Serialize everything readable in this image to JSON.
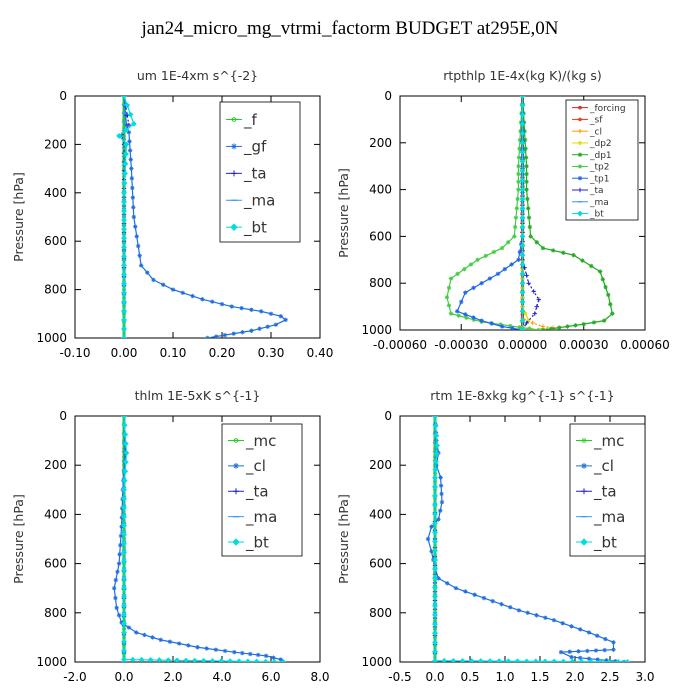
{
  "figure_title": "jan24_micro_mg_vtrmi_factorm  BUDGET at295E,0N",
  "chart_data": [
    {
      "type": "line",
      "title": "um   1E-4xm s^{-2}",
      "ylabel": "Pressure [hPa]",
      "xlim": [
        -0.1,
        0.4
      ],
      "ylim": [
        1000,
        0
      ],
      "xticks": [
        "-0.10",
        "0.00",
        "0.10",
        "0.20",
        "0.30",
        "0.40"
      ],
      "xtick_values": [
        -0.1,
        0.0,
        0.1,
        0.2,
        0.3,
        0.4
      ],
      "yticks": [
        "0",
        "200",
        "400",
        "600",
        "800",
        "1000"
      ],
      "ytick_values": [
        0,
        200,
        400,
        600,
        800,
        1000
      ],
      "legend_placement": "top-right",
      "legend_size": "large",
      "series": [
        {
          "name": "_f",
          "color": "#22cc22",
          "marker": "circle",
          "x": [
            0,
            0,
            0,
            0,
            0,
            0,
            0,
            0,
            0,
            0,
            0
          ],
          "y": [
            0,
            100,
            200,
            300,
            400,
            500,
            600,
            700,
            800,
            900,
            1000
          ]
        },
        {
          "name": "_gf",
          "color": "#1f6fdf",
          "marker": "star",
          "x": [
            0,
            0.005,
            0.01,
            0.015,
            0.02,
            0.035,
            0.06,
            0.1,
            0.16,
            0.22,
            0.28,
            0.32,
            0.33,
            0.31,
            0.26,
            0.17
          ],
          "y": [
            0,
            120,
            150,
            300,
            500,
            700,
            760,
            800,
            840,
            870,
            890,
            910,
            925,
            945,
            970,
            1000
          ]
        },
        {
          "name": "_ta",
          "color": "#2222cc",
          "marker": "plus",
          "x": [
            0,
            0.01,
            -0.005,
            0,
            0,
            0
          ],
          "y": [
            0,
            120,
            160,
            200,
            600,
            1000
          ]
        },
        {
          "name": "_ma",
          "color": "#3399ff",
          "marker": "dash",
          "x": [
            0,
            0,
            0,
            0,
            0
          ],
          "y": [
            0,
            250,
            500,
            750,
            1000
          ]
        },
        {
          "name": "_bt",
          "color": "#00dddd",
          "marker": "diamond",
          "x": [
            0,
            0.02,
            -0.01,
            0.005,
            0,
            0
          ],
          "y": [
            0,
            115,
            165,
            200,
            400,
            1000
          ]
        }
      ]
    },
    {
      "type": "line",
      "title": "rtpthlp   1E-4x(kg K)/(kg s)",
      "ylabel": "Pressure [hPa]",
      "xlim": [
        -0.0006,
        0.0006
      ],
      "ylim": [
        1000,
        0
      ],
      "xticks": [
        "-0.00060",
        "-0.00030",
        "0.00000",
        "0.00030",
        "0.00060"
      ],
      "xtick_values": [
        -0.0006,
        -0.0003,
        0.0,
        0.0003,
        0.0006
      ],
      "yticks": [
        "0",
        "200",
        "400",
        "600",
        "800",
        "1000"
      ],
      "ytick_values": [
        0,
        200,
        400,
        600,
        800,
        1000
      ],
      "legend_placement": "top-right",
      "legend_size": "small",
      "series": [
        {
          "name": "_forcing",
          "color": "#cc2222",
          "marker": "circle",
          "x": [
            0,
            0,
            0,
            0,
            0,
            0,
            0,
            0,
            0,
            0,
            0
          ],
          "y": [
            0,
            100,
            200,
            300,
            400,
            500,
            600,
            700,
            800,
            900,
            1000
          ]
        },
        {
          "name": "_sf",
          "color": "#ee3311",
          "marker": "circle",
          "x": [
            0,
            0,
            0,
            0,
            0,
            0
          ],
          "y": [
            0,
            200,
            400,
            600,
            800,
            1000
          ]
        },
        {
          "name": "_cl",
          "color": "#ff9900",
          "marker": "plus",
          "x": [
            0,
            0,
            0,
            0,
            5e-05,
            0.0001,
            0.00015,
            5e-05
          ],
          "y": [
            0,
            500,
            900,
            950,
            970,
            985,
            990,
            1000
          ]
        },
        {
          "name": "_dp2",
          "color": "#dddd00",
          "marker": "circle",
          "x": [
            0,
            0,
            3e-05,
            0,
            0
          ],
          "y": [
            0,
            900,
            960,
            990,
            1000
          ]
        },
        {
          "name": "_dp1",
          "color": "#22aa22",
          "marker": "star",
          "x": [
            0,
            2e-05,
            2e-05,
            4e-05,
            0.0001,
            0.00025,
            0.00038,
            0.00042,
            0.00044,
            0.0004,
            0.0003,
            0.0001
          ],
          "y": [
            0,
            300,
            400,
            600,
            650,
            680,
            750,
            850,
            930,
            960,
            975,
            1000
          ]
        },
        {
          "name": "_tp2",
          "color": "#44cc44",
          "marker": "star",
          "x": [
            0,
            -2e-05,
            -2e-05,
            -4e-05,
            -0.0001,
            -0.00022,
            -0.00035,
            -0.00037,
            -0.00035,
            -0.0002,
            8e-05
          ],
          "y": [
            0,
            300,
            400,
            600,
            650,
            700,
            780,
            860,
            930,
            965,
            1000
          ]
        },
        {
          "name": "_tp1",
          "color": "#2266ee",
          "marker": "star",
          "x": [
            0,
            0,
            -2e-05,
            -0.00012,
            -0.00028,
            -0.00032,
            -0.0002,
            -0.0001,
            0
          ],
          "y": [
            0,
            600,
            700,
            760,
            840,
            920,
            960,
            985,
            1000
          ]
        },
        {
          "name": "_ta",
          "color": "#2222cc",
          "marker": "plus",
          "x": [
            0,
            0,
            3e-05,
            8e-05,
            6e-05,
            2e-05,
            0
          ],
          "y": [
            0,
            700,
            800,
            870,
            930,
            970,
            1000
          ]
        },
        {
          "name": "_ma",
          "color": "#3399ff",
          "marker": "dash",
          "x": [
            0,
            0,
            0,
            0
          ],
          "y": [
            0,
            400,
            800,
            1000
          ]
        },
        {
          "name": "_bt",
          "color": "#00dddd",
          "marker": "diamond",
          "x": [
            0,
            0,
            0,
            0
          ],
          "y": [
            0,
            400,
            800,
            1000
          ]
        }
      ]
    },
    {
      "type": "line",
      "title": "thlm   1E-5xK  s^{-1}",
      "ylabel": "Pressure [hPa]",
      "xlim": [
        -2.0,
        8.0
      ],
      "ylim": [
        1000,
        0
      ],
      "xticks": [
        "-2.0",
        "0.0",
        "2.0",
        "4.0",
        "6.0",
        "8.0"
      ],
      "xtick_values": [
        -2.0,
        0.0,
        2.0,
        4.0,
        6.0,
        8.0
      ],
      "yticks": [
        "0",
        "200",
        "400",
        "600",
        "800",
        "1000"
      ],
      "ytick_values": [
        0,
        200,
        400,
        600,
        800,
        1000
      ],
      "legend_placement": "top-right",
      "legend_size": "large",
      "series": [
        {
          "name": "_mc",
          "color": "#22cc22",
          "marker": "circle",
          "x": [
            0,
            0,
            0,
            0,
            0,
            0,
            0,
            0,
            0,
            0,
            0
          ],
          "y": [
            0,
            100,
            200,
            300,
            400,
            500,
            600,
            700,
            800,
            900,
            1000
          ]
        },
        {
          "name": "_cl",
          "color": "#1f6fdf",
          "marker": "star",
          "x": [
            0,
            0.05,
            -0.05,
            -0.1,
            -0.2,
            -0.4,
            -0.3,
            -0.1,
            0.5,
            1.5,
            3.0,
            4.5,
            5.8,
            6.4,
            6.5
          ],
          "y": [
            0,
            150,
            300,
            450,
            600,
            700,
            780,
            840,
            880,
            910,
            940,
            960,
            975,
            990,
            1000
          ]
        },
        {
          "name": "_ta",
          "color": "#2222cc",
          "marker": "plus",
          "x": [
            0,
            0.05,
            0,
            0
          ],
          "y": [
            0,
            150,
            300,
            1000
          ]
        },
        {
          "name": "_ma",
          "color": "#3399ff",
          "marker": "dash",
          "x": [
            0,
            0,
            0,
            0
          ],
          "y": [
            0,
            400,
            800,
            1000
          ]
        },
        {
          "name": "_bt",
          "color": "#00dddd",
          "marker": "diamond",
          "x": [
            0,
            0.1,
            0,
            0,
            6.5
          ],
          "y": [
            0,
            150,
            300,
            990,
            1000
          ]
        }
      ]
    },
    {
      "type": "line",
      "title": "rtm   1E-8xkg kg^{-1} s^{-1}",
      "ylabel": "Pressure [hPa]",
      "xlim": [
        -0.5,
        3.0
      ],
      "ylim": [
        1000,
        0
      ],
      "xticks": [
        "-0.5",
        "0.0",
        "0.5",
        "1.0",
        "1.5",
        "2.0",
        "2.5",
        "3.0"
      ],
      "xtick_values": [
        -0.5,
        0.0,
        0.5,
        1.0,
        1.5,
        2.0,
        2.5,
        3.0
      ],
      "yticks": [
        "0",
        "200",
        "400",
        "600",
        "800",
        "1000"
      ],
      "ytick_values": [
        0,
        200,
        400,
        600,
        800,
        1000
      ],
      "legend_placement": "top-right",
      "legend_size": "large",
      "series": [
        {
          "name": "_mc",
          "color": "#22cc22",
          "marker": "circle",
          "x": [
            0,
            0,
            0,
            0,
            0,
            0,
            0,
            0,
            0,
            0,
            0
          ],
          "y": [
            0,
            100,
            200,
            300,
            400,
            500,
            600,
            700,
            800,
            900,
            1000
          ]
        },
        {
          "name": "_cl",
          "color": "#1f6fdf",
          "marker": "star",
          "x": [
            0,
            0.02,
            0.05,
            0.02,
            0.08,
            0.1,
            0.05,
            -0.05,
            -0.1,
            -0.05,
            0.0,
            0.05,
            0.3,
            0.7,
            1.2,
            1.7,
            2.2,
            2.55,
            2.55,
            1.8,
            1.95,
            2.7
          ],
          "y": [
            0,
            100,
            150,
            200,
            250,
            350,
            420,
            450,
            500,
            550,
            620,
            660,
            700,
            740,
            790,
            830,
            880,
            920,
            950,
            960,
            980,
            1000
          ]
        },
        {
          "name": "_ta",
          "color": "#2222cc",
          "marker": "plus",
          "x": [
            0,
            0.03,
            0,
            0
          ],
          "y": [
            0,
            120,
            250,
            1000
          ]
        },
        {
          "name": "_ma",
          "color": "#3399ff",
          "marker": "dash",
          "x": [
            0,
            0,
            0,
            0
          ],
          "y": [
            0,
            400,
            800,
            1000
          ]
        },
        {
          "name": "_bt",
          "color": "#00dddd",
          "marker": "diamond",
          "x": [
            0,
            0.03,
            0,
            0,
            2.75
          ],
          "y": [
            0,
            120,
            250,
            995,
            1000
          ]
        }
      ]
    }
  ]
}
